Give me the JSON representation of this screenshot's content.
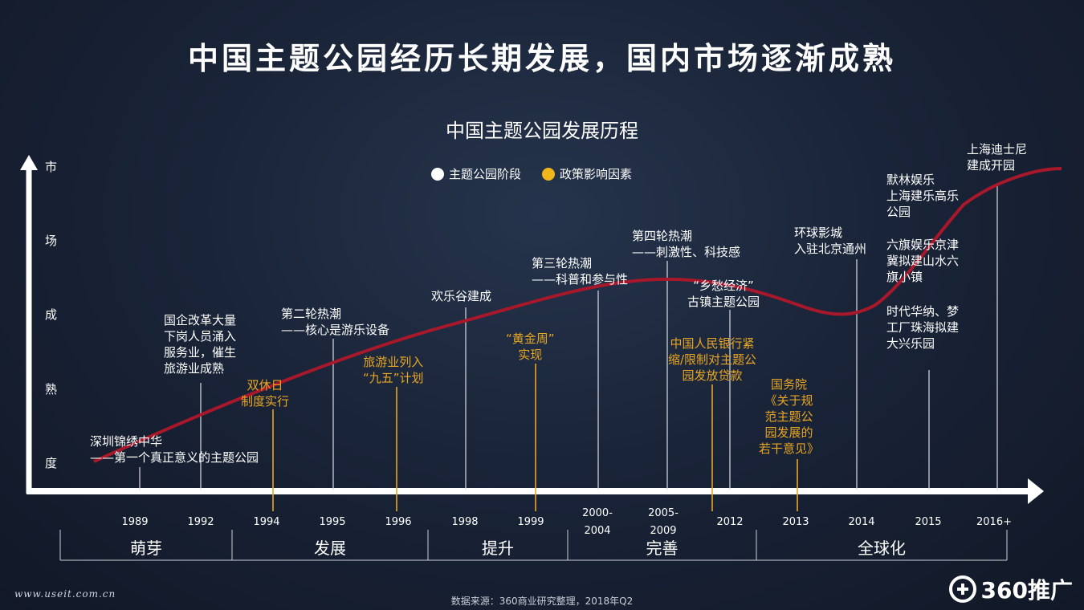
{
  "header": {
    "title": "中国主题公园经历长期发展，国内市场逐渐成熟",
    "subtitle": "中国主题公园发展历程"
  },
  "legend": {
    "stage_label": "主题公园阶段",
    "policy_label": "政策影响因素"
  },
  "y_axis_chars": [
    "市",
    "场",
    "成",
    "熟",
    "度"
  ],
  "years": [
    "1989",
    "1992",
    "1994",
    "1995",
    "1996",
    "1998",
    "1999",
    "2000-\n2004",
    "2005-\n2009",
    "2012",
    "2013",
    "2014",
    "2015",
    "2016+"
  ],
  "phases": [
    "萌芽",
    "发展",
    "提升",
    "完善",
    "全球化"
  ],
  "events": {
    "e1989": "深圳锦绣中华\n——第一个真正意义的主题公园",
    "e1992": "国企改革大量\n下岗人员涌入\n服务业，催生\n旅游业成熟",
    "e1994": "双休日\n制度实行",
    "e1995": "第二轮热潮\n——核心是游乐设备",
    "e1996": "旅游业列入\n“九五”计划",
    "e1998": "欢乐谷建成",
    "e1999": "“黄金周”\n实现",
    "e2000": "第三轮热潮\n——科普和参与性",
    "e2005": "第四轮热潮\n——刺激性、科技感",
    "e2010": "中国人民银行紧\n缩/限制对主题公\n园发放贷款",
    "e2012": "“乡愁经济”\n古镇主题公园",
    "e2013": "国务院\n《关于规\n范主题公\n园发展的\n若干意见》",
    "e2014": "环球影城\n入驻北京通州",
    "e2015a": "默林娱乐\n上海建乐高乐\n公园",
    "e2015b": "六旗娱乐京津\n冀拟建山水六\n旗小镇",
    "e2015c": "时代华纳、梦\n工厂珠海拟建\n大兴乐园",
    "e2016": "上海迪士尼\n建成开园"
  },
  "footer": {
    "source": "数据来源：360商业研究整理，2018年Q2",
    "watermark": "www.useit.com.cn",
    "brand": "360推广"
  },
  "colors": {
    "curve": "#a8182a",
    "policy": "#e8a623",
    "stage": "#ffffff"
  }
}
